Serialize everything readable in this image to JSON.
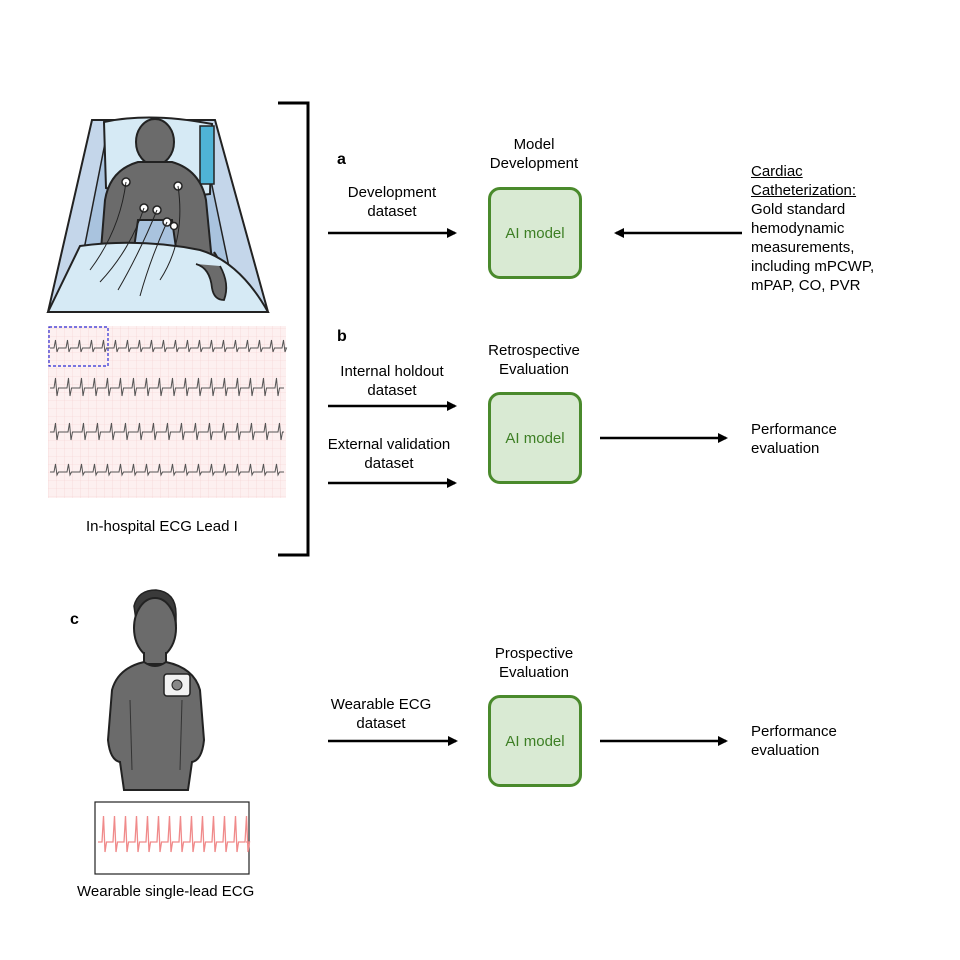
{
  "panels": {
    "a": {
      "letter": "a",
      "stage": [
        "Model",
        "Development"
      ],
      "input": [
        "Development",
        "dataset"
      ],
      "box_label": "AI model",
      "reference_title": [
        "Cardiac",
        "Catheterization:"
      ],
      "reference_body": [
        "Gold standard",
        "hemodynamic",
        "measurements,",
        "including mPCWP,",
        "mPAP, CO, PVR"
      ]
    },
    "b": {
      "letter": "b",
      "stage": [
        "Retrospective",
        "Evaluation"
      ],
      "input1": [
        "Internal holdout",
        "dataset"
      ],
      "input2": [
        "External validation",
        "dataset"
      ],
      "box_label": "AI model",
      "output": [
        "Performance",
        "evaluation"
      ]
    },
    "c": {
      "letter": "c",
      "stage": [
        "Prospective",
        "Evaluation"
      ],
      "input": [
        "Wearable ECG",
        "dataset"
      ],
      "box_label": "AI model",
      "output": [
        "Performance",
        "evaluation"
      ]
    }
  },
  "captions": {
    "hospital_ecg": "In-hospital ECG Lead I",
    "wearable_ecg": "Wearable single-lead ECG"
  },
  "colors": {
    "box_fill": "#d9ead3",
    "box_border": "#4a8a2c",
    "box_text": "#3d7f24",
    "ecg_grid": "#fbe3e3",
    "wearable_trace": "#f08a8a",
    "figure_gray": "#6b6b6b",
    "bed_blue": "#a9c3de"
  }
}
